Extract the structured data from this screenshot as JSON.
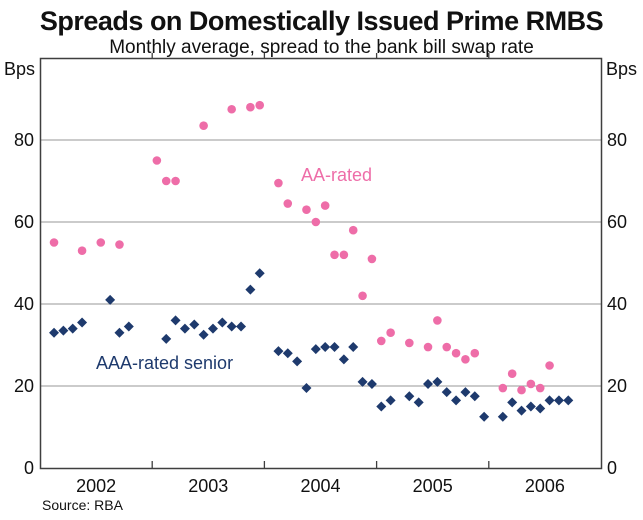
{
  "header": {
    "title": "Spreads on Domestically Issued Prime RMBS",
    "subtitle": "Monthly average, spread to the bank bill swap rate"
  },
  "axes": {
    "unit": "Bps"
  },
  "annotations": {
    "aa_label": "AA-rated",
    "aaa_label": "AAA-rated senior"
  },
  "footer": {
    "source": "Source: RBA"
  },
  "colors": {
    "aa": "#ee6da8",
    "aaa": "#1e3a6d",
    "grid": "#979797",
    "frame": "#3f3f3f",
    "text": "#111111"
  },
  "chart_data": {
    "type": "scatter",
    "title": "Spreads on Domestically Issued Prime RMBS",
    "subtitle": "Monthly average, spread to the bank bill swap rate",
    "ylabel": "Bps",
    "ylim": [
      0,
      100
    ],
    "yticks": [
      0,
      20,
      40,
      60,
      80
    ],
    "xlim_years": [
      2002,
      2007
    ],
    "xlabels": [
      "2002",
      "2003",
      "2004",
      "2005",
      "2006"
    ],
    "grid": true,
    "legend_position": "inline-annotations",
    "series": [
      {
        "name": "AA-rated",
        "marker": "circle",
        "color": "#ee6da8",
        "points": [
          [
            "2002-02",
            55
          ],
          [
            "2002-05",
            53
          ],
          [
            "2002-07",
            55
          ],
          [
            "2002-09",
            54.5
          ],
          [
            "2003-01",
            75
          ],
          [
            "2003-02",
            70
          ],
          [
            "2003-03",
            70
          ],
          [
            "2003-06",
            83.5
          ],
          [
            "2003-09",
            87.5
          ],
          [
            "2003-11",
            88
          ],
          [
            "2003-12",
            88.5
          ],
          [
            "2004-02",
            69.5
          ],
          [
            "2004-03",
            64.5
          ],
          [
            "2004-05",
            63
          ],
          [
            "2004-06",
            60
          ],
          [
            "2004-07",
            64
          ],
          [
            "2004-08",
            52
          ],
          [
            "2004-09",
            52
          ],
          [
            "2004-10",
            58
          ],
          [
            "2004-11",
            42
          ],
          [
            "2004-12",
            51
          ],
          [
            "2005-01",
            31
          ],
          [
            "2005-02",
            33
          ],
          [
            "2005-04",
            30.5
          ],
          [
            "2005-06",
            29.5
          ],
          [
            "2005-07",
            36
          ],
          [
            "2005-08",
            29.5
          ],
          [
            "2005-09",
            28
          ],
          [
            "2005-10",
            26.5
          ],
          [
            "2005-11",
            28
          ],
          [
            "2006-02",
            19.5
          ],
          [
            "2006-03",
            23
          ],
          [
            "2006-04",
            19
          ],
          [
            "2006-05",
            20.5
          ],
          [
            "2006-06",
            19.5
          ],
          [
            "2006-07",
            25
          ]
        ]
      },
      {
        "name": "AAA-rated senior",
        "marker": "diamond",
        "color": "#1e3a6d",
        "points": [
          [
            "2002-02",
            33
          ],
          [
            "2002-03",
            33.5
          ],
          [
            "2002-04",
            34
          ],
          [
            "2002-05",
            35.5
          ],
          [
            "2002-08",
            41
          ],
          [
            "2002-09",
            33
          ],
          [
            "2002-10",
            34.5
          ],
          [
            "2003-02",
            31.5
          ],
          [
            "2003-03",
            36
          ],
          [
            "2003-04",
            34
          ],
          [
            "2003-05",
            35
          ],
          [
            "2003-06",
            32.5
          ],
          [
            "2003-07",
            34
          ],
          [
            "2003-08",
            35.5
          ],
          [
            "2003-09",
            34.5
          ],
          [
            "2003-10",
            34.5
          ],
          [
            "2003-11",
            43.5
          ],
          [
            "2003-12",
            47.5
          ],
          [
            "2004-02",
            28.5
          ],
          [
            "2004-03",
            28
          ],
          [
            "2004-04",
            26
          ],
          [
            "2004-05",
            19.5
          ],
          [
            "2004-06",
            29
          ],
          [
            "2004-07",
            29.5
          ],
          [
            "2004-08",
            29.5
          ],
          [
            "2004-09",
            26.5
          ],
          [
            "2004-10",
            29.5
          ],
          [
            "2004-11",
            21
          ],
          [
            "2004-12",
            20.5
          ],
          [
            "2005-01",
            15
          ],
          [
            "2005-02",
            16.5
          ],
          [
            "2005-04",
            17.5
          ],
          [
            "2005-05",
            16
          ],
          [
            "2005-06",
            20.5
          ],
          [
            "2005-07",
            21
          ],
          [
            "2005-08",
            18.5
          ],
          [
            "2005-09",
            16.5
          ],
          [
            "2005-10",
            18.5
          ],
          [
            "2005-11",
            17.5
          ],
          [
            "2005-12",
            12.5
          ],
          [
            "2006-02",
            12.5
          ],
          [
            "2006-03",
            16
          ],
          [
            "2006-04",
            14
          ],
          [
            "2006-05",
            15
          ],
          [
            "2006-06",
            14.5
          ],
          [
            "2006-07",
            16.5
          ],
          [
            "2006-08",
            16.5
          ],
          [
            "2006-09",
            16.5
          ]
        ]
      }
    ]
  }
}
